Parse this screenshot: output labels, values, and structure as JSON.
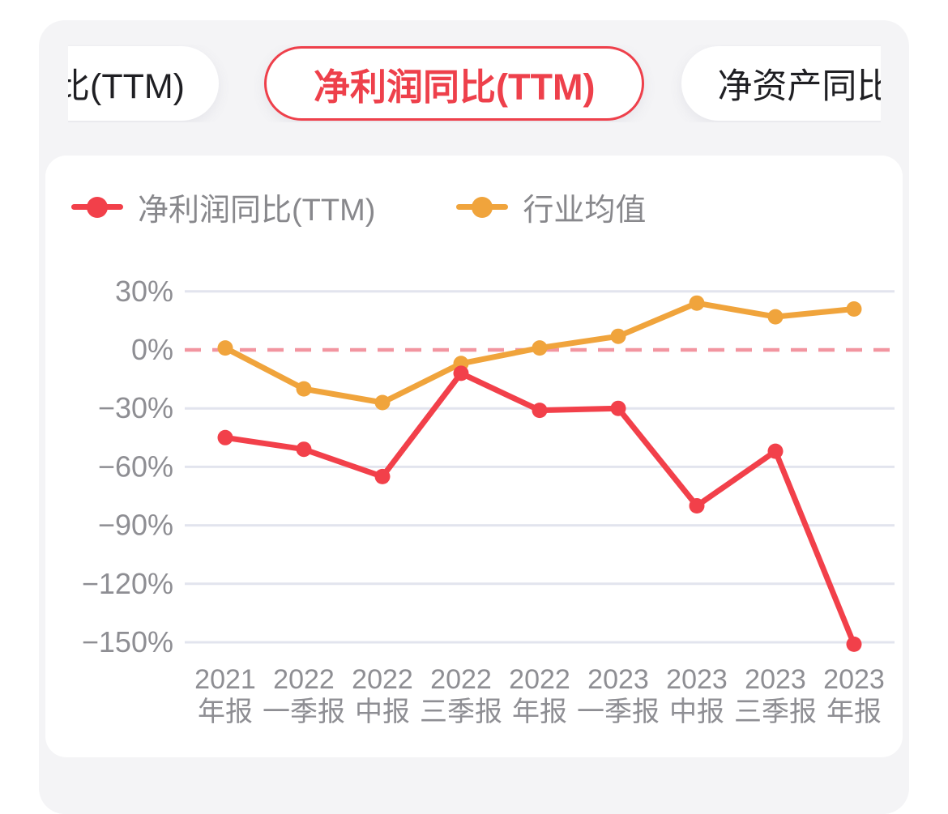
{
  "tabs": {
    "left_partial": {
      "label": "比(TTM)"
    },
    "selected": {
      "label": "净利润同比(TTM)"
    },
    "right": {
      "label": "净资产同比"
    }
  },
  "colors": {
    "accent_red": "#ee404b",
    "series_red": "#f2404a",
    "series_orange": "#f0a43c",
    "zero_dash_pink": "#f295a0",
    "gridline": "#e2e4ee",
    "axis_text": "#8e8e93",
    "legend_text": "#88888c",
    "card_bg": "#f4f4f6",
    "panel_bg": "#ffffff"
  },
  "chart_data": {
    "type": "line",
    "title": "净利润同比(TTM)",
    "categories": [
      "2021年报",
      "2022一季报",
      "2022中报",
      "2022三季报",
      "2022年报",
      "2023一季报",
      "2023中报",
      "2023三季报",
      "2023年报"
    ],
    "x_tick_lines": [
      [
        "2021",
        "年报"
      ],
      [
        "2022",
        "一季报"
      ],
      [
        "2022",
        "中报"
      ],
      [
        "2022",
        "三季报"
      ],
      [
        "2022",
        "年报"
      ],
      [
        "2023",
        "一季报"
      ],
      [
        "2023",
        "中报"
      ],
      [
        "2023",
        "三季报"
      ],
      [
        "2023",
        "年报"
      ]
    ],
    "series": [
      {
        "name": "净利润同比(TTM)",
        "color": "#f2404a",
        "values": [
          -45,
          -51,
          -65,
          -12,
          -31,
          -30,
          -80,
          -52,
          -151
        ]
      },
      {
        "name": "行业均值",
        "color": "#f0a43c",
        "values": [
          1,
          -20,
          -27,
          -7,
          1,
          7,
          24,
          17,
          21
        ]
      }
    ],
    "yticks": [
      {
        "value": 30,
        "label": "30%"
      },
      {
        "value": 0,
        "label": "0%"
      },
      {
        "value": -30,
        "label": "−30%"
      },
      {
        "value": -60,
        "label": "−60%"
      },
      {
        "value": -90,
        "label": "−90%"
      },
      {
        "value": -120,
        "label": "−120%"
      },
      {
        "value": -150,
        "label": "−150%"
      }
    ],
    "ylim": [
      -158,
      38
    ],
    "grid": true,
    "zero_line": {
      "value": 0,
      "style": "dashed",
      "color": "#f295a0"
    },
    "legend_position": "top-left",
    "xlabel": "",
    "ylabel": ""
  }
}
